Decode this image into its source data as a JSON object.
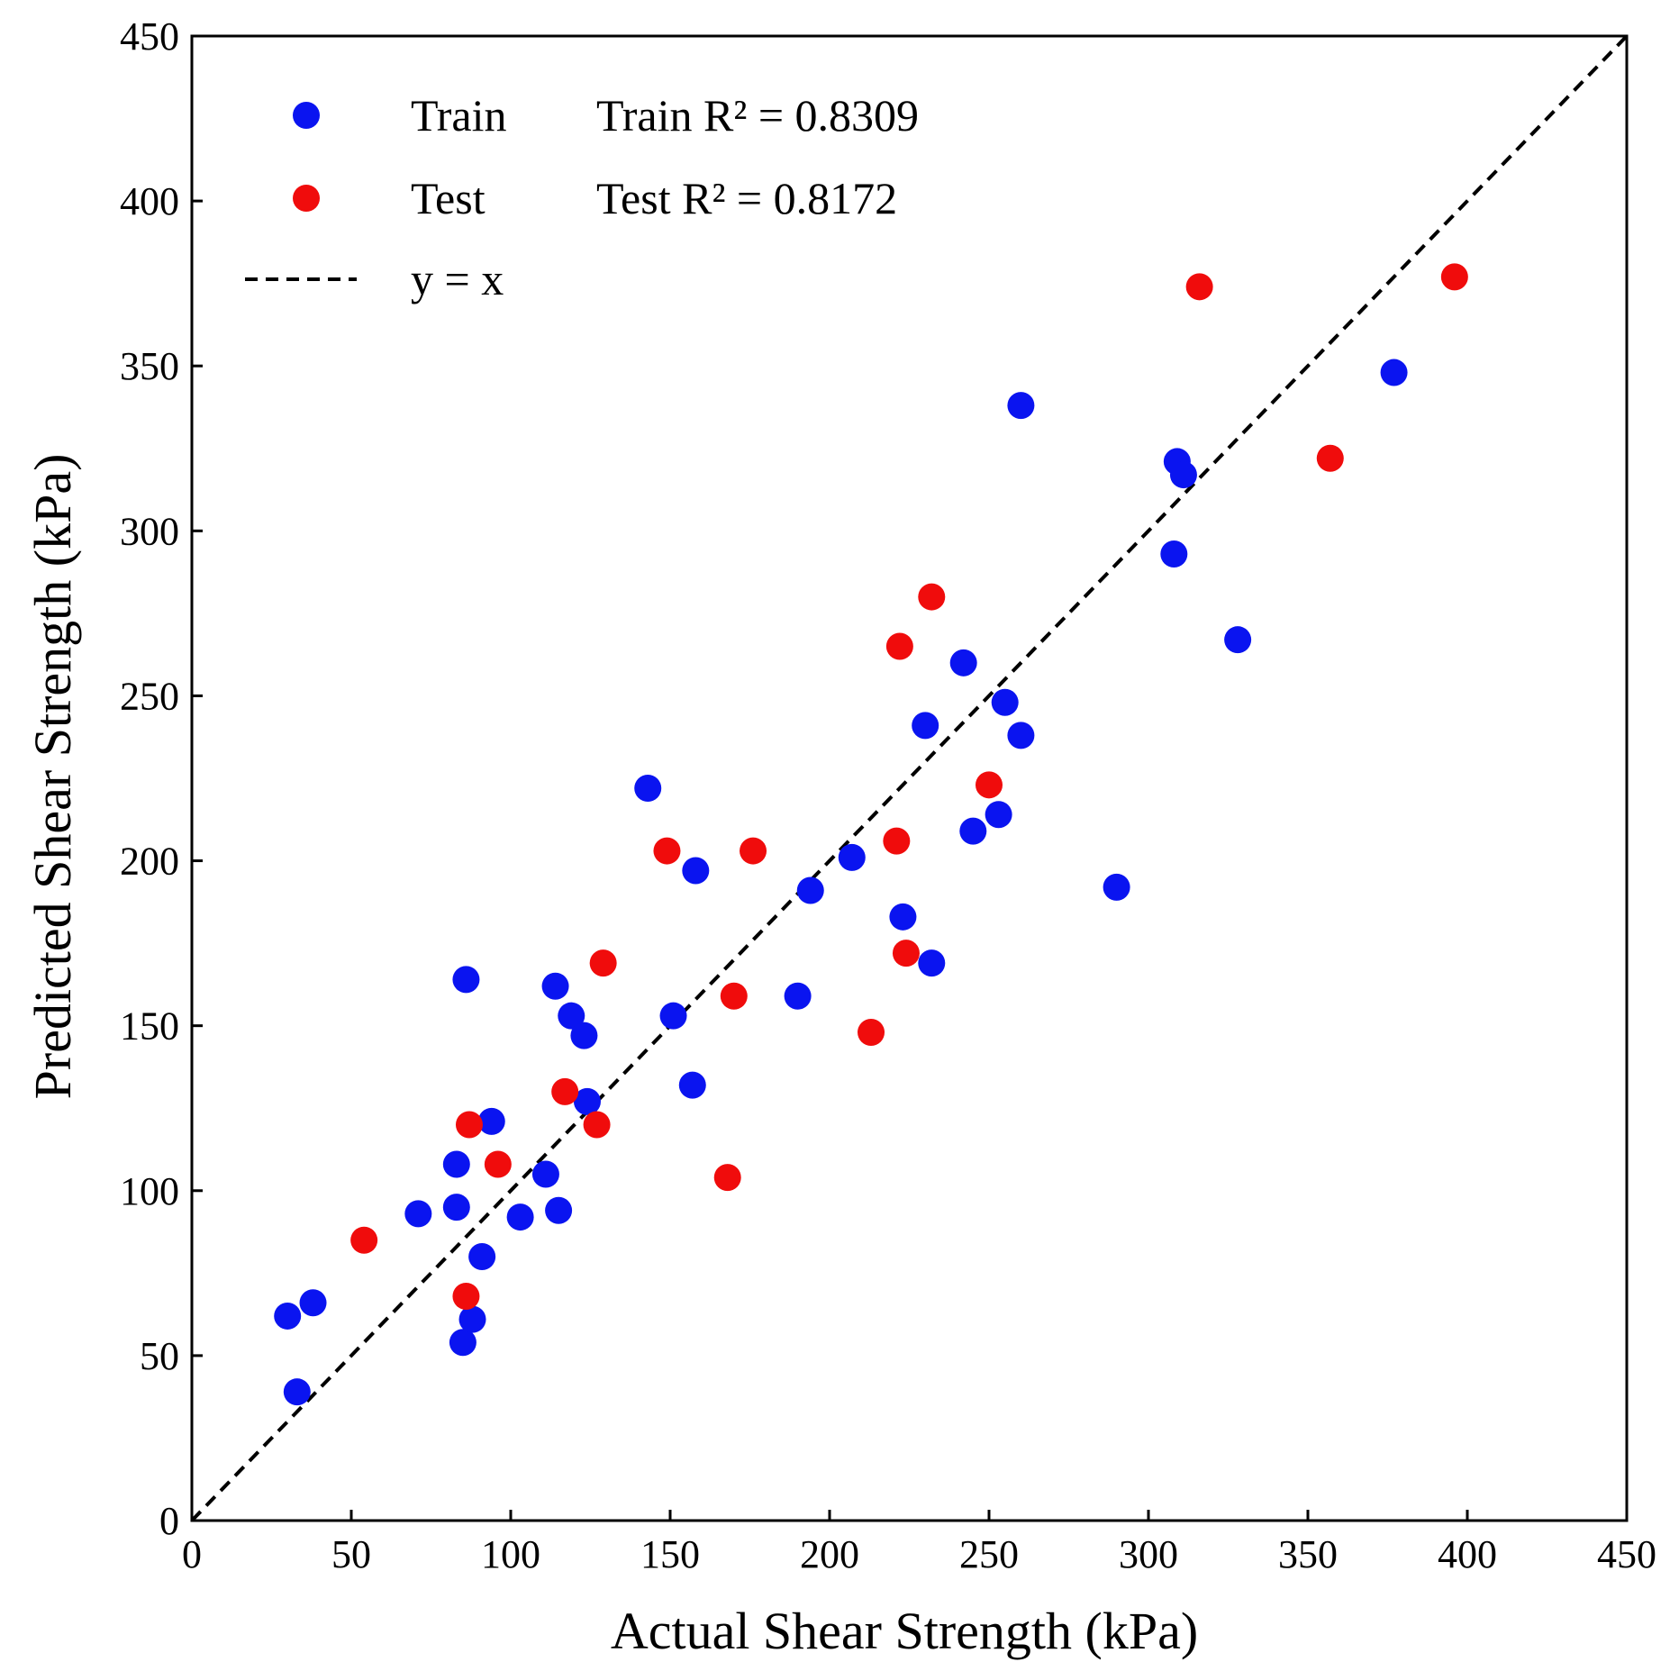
{
  "chart_data": {
    "type": "scatter",
    "xlabel": "Actual Shear Strength (kPa)",
    "ylabel": "Predicted Shear Strength (kPa)",
    "xlim": [
      0,
      450
    ],
    "ylim": [
      0,
      450
    ],
    "xticks": [
      "0",
      "50",
      "100",
      "150",
      "200",
      "250",
      "300",
      "350",
      "400",
      "450"
    ],
    "yticks": [
      "0",
      "50",
      "100",
      "150",
      "200",
      "250",
      "300",
      "350",
      "400",
      "450"
    ],
    "grid": false,
    "legend_position": "top-left",
    "legend": {
      "train_label": "Train",
      "test_label": "Test",
      "line_label": "y = x",
      "train_r2": "Train R² = 0.8309",
      "test_r2": "Test R² = 0.8172"
    },
    "reference_line": {
      "name": "y = x",
      "style": "dashed",
      "color": "#000000",
      "from": [
        0,
        0
      ],
      "to": [
        450,
        450
      ]
    },
    "series": [
      {
        "name": "Train",
        "color": "#0a14f0",
        "points": [
          [
            30,
            62
          ],
          [
            33,
            39
          ],
          [
            38,
            66
          ],
          [
            71,
            93
          ],
          [
            83,
            108
          ],
          [
            83,
            95
          ],
          [
            85,
            54
          ],
          [
            86,
            164
          ],
          [
            88,
            61
          ],
          [
            91,
            80
          ],
          [
            94,
            121
          ],
          [
            103,
            92
          ],
          [
            111,
            105
          ],
          [
            114,
            162
          ],
          [
            115,
            94
          ],
          [
            119,
            153
          ],
          [
            123,
            147
          ],
          [
            124,
            127
          ],
          [
            143,
            222
          ],
          [
            151,
            153
          ],
          [
            157,
            132
          ],
          [
            158,
            197
          ],
          [
            190,
            159
          ],
          [
            194,
            191
          ],
          [
            207,
            201
          ],
          [
            223,
            183
          ],
          [
            230,
            241
          ],
          [
            232,
            169
          ],
          [
            242,
            260
          ],
          [
            245,
            209
          ],
          [
            253,
            214
          ],
          [
            255,
            248
          ],
          [
            260,
            338
          ],
          [
            260,
            238
          ],
          [
            290,
            192
          ],
          [
            308,
            293
          ],
          [
            309,
            321
          ],
          [
            311,
            317
          ],
          [
            328,
            267
          ],
          [
            377,
            348
          ]
        ]
      },
      {
        "name": "Test",
        "color": "#f00c0c",
        "points": [
          [
            54,
            85
          ],
          [
            86,
            68
          ],
          [
            87,
            120
          ],
          [
            96,
            108
          ],
          [
            117,
            130
          ],
          [
            127,
            120
          ],
          [
            129,
            169
          ],
          [
            149,
            203
          ],
          [
            168,
            104
          ],
          [
            170,
            159
          ],
          [
            176,
            203
          ],
          [
            213,
            148
          ],
          [
            221,
            206
          ],
          [
            222,
            265
          ],
          [
            224,
            172
          ],
          [
            232,
            280
          ],
          [
            250,
            223
          ],
          [
            316,
            374
          ],
          [
            357,
            322
          ],
          [
            396,
            377
          ]
        ]
      }
    ]
  }
}
